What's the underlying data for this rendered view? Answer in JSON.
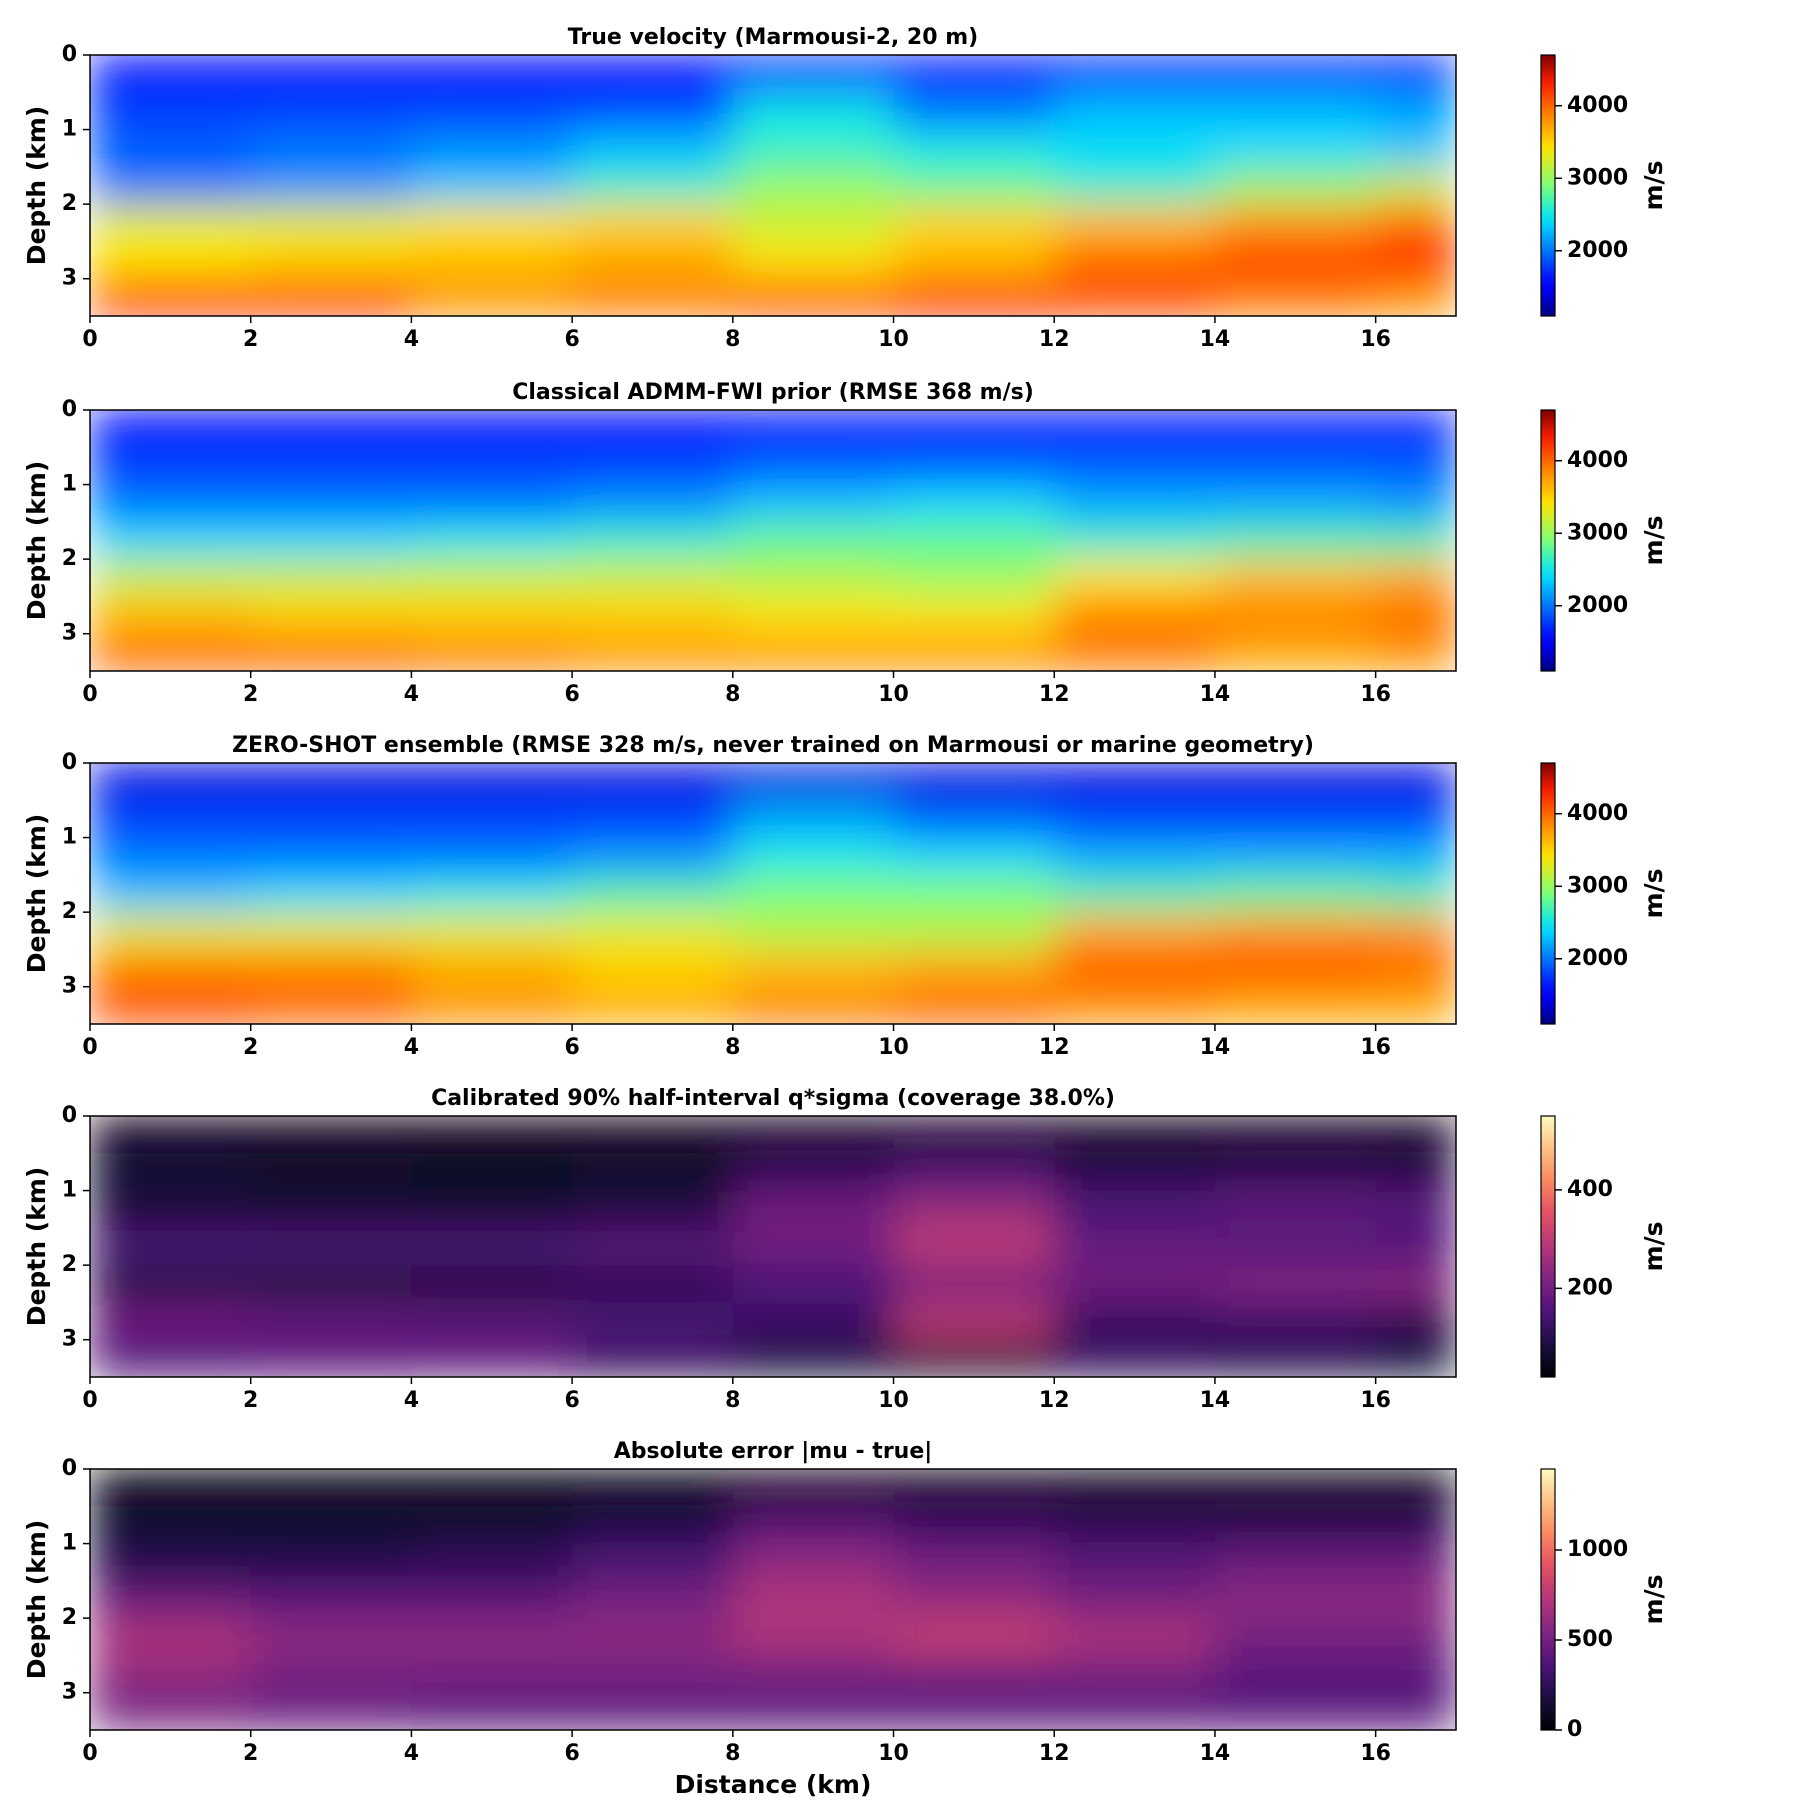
{
  "chart_data": [
    {
      "type": "heatmap",
      "title": "True velocity (Marmousi-2, 20 m)",
      "ylabel": "Depth (km)",
      "colorbar_label": "m/s",
      "colormap": "jet",
      "xlim": [
        0,
        17
      ],
      "xticks": [
        0,
        2,
        4,
        6,
        8,
        10,
        12,
        14,
        16
      ],
      "ylim": [
        3.5,
        0
      ],
      "yticks": [
        0,
        1,
        2,
        3
      ],
      "clim": [
        1100,
        4700
      ],
      "cticks": [
        2000,
        3000,
        4000
      ],
      "xbins": [
        0,
        2,
        4,
        6,
        8,
        10,
        12,
        14,
        16,
        17
      ],
      "ybins": [
        0,
        0.5,
        1,
        1.5,
        2,
        2.5,
        3,
        3.5
      ],
      "values": [
        [
          1500,
          1500,
          1500,
          1500,
          1500,
          1500,
          1500,
          1500,
          1500
        ],
        [
          1800,
          1800,
          1800,
          1800,
          2500,
          2000,
          2300,
          2300,
          2200
        ],
        [
          1900,
          2000,
          2100,
          2300,
          2600,
          2500,
          2400,
          2400,
          2300
        ],
        [
          2000,
          2100,
          2300,
          2600,
          3000,
          2800,
          2600,
          3000,
          3200
        ],
        [
          3300,
          3300,
          3400,
          3500,
          3200,
          3500,
          3600,
          3800,
          4000
        ],
        [
          3400,
          3500,
          3600,
          3700,
          3400,
          3600,
          4000,
          4200,
          4300
        ],
        [
          4300,
          4200,
          3800,
          3900,
          4100,
          4300,
          4100,
          3900,
          3800
        ]
      ]
    },
    {
      "type": "heatmap",
      "title": "Classical ADMM-FWI prior (RMSE 368 m/s)",
      "ylabel": "Depth (km)",
      "colorbar_label": "m/s",
      "colormap": "jet",
      "xlim": [
        0,
        17
      ],
      "xticks": [
        0,
        2,
        4,
        6,
        8,
        10,
        12,
        14,
        16
      ],
      "ylim": [
        3.5,
        0
      ],
      "yticks": [
        0,
        1,
        2,
        3
      ],
      "clim": [
        1100,
        4700
      ],
      "cticks": [
        2000,
        3000,
        4000
      ],
      "xbins": [
        0,
        2,
        4,
        6,
        8,
        10,
        12,
        14,
        16,
        17
      ],
      "ybins": [
        0,
        0.5,
        1,
        1.5,
        2,
        2.5,
        3,
        3.5
      ],
      "values": [
        [
          1500,
          1500,
          1500,
          1500,
          1500,
          1500,
          1500,
          1500,
          1500
        ],
        [
          1800,
          1800,
          1800,
          1800,
          1900,
          1900,
          1900,
          1900,
          1900
        ],
        [
          2000,
          2000,
          2000,
          2100,
          2300,
          2400,
          2200,
          2200,
          2100
        ],
        [
          2400,
          2400,
          2500,
          2600,
          2800,
          2800,
          2600,
          2700,
          2700
        ],
        [
          3200,
          3200,
          3200,
          3200,
          3100,
          3000,
          3400,
          3600,
          3700
        ],
        [
          3600,
          3500,
          3500,
          3500,
          3400,
          3400,
          3900,
          3900,
          4000
        ],
        [
          4000,
          4000,
          3900,
          3800,
          3800,
          3800,
          3900,
          3700,
          3800
        ]
      ]
    },
    {
      "type": "heatmap",
      "title": "ZERO-SHOT ensemble (RMSE 328 m/s, never trained on Marmousi or marine geometry)",
      "ylabel": "Depth (km)",
      "colorbar_label": "m/s",
      "colormap": "jet",
      "xlim": [
        0,
        17
      ],
      "xticks": [
        0,
        2,
        4,
        6,
        8,
        10,
        12,
        14,
        16
      ],
      "ylim": [
        3.5,
        0
      ],
      "yticks": [
        0,
        1,
        2,
        3
      ],
      "clim": [
        1100,
        4700
      ],
      "cticks": [
        2000,
        3000,
        4000
      ],
      "xbins": [
        0,
        2,
        4,
        6,
        8,
        10,
        12,
        14,
        16,
        17
      ],
      "ybins": [
        0,
        0.5,
        1,
        1.5,
        2,
        2.5,
        3,
        3.5
      ],
      "values": [
        [
          1400,
          1400,
          1400,
          1400,
          1400,
          1400,
          1400,
          1400,
          1400
        ],
        [
          1800,
          1800,
          1800,
          1800,
          2200,
          1900,
          1800,
          1800,
          1800
        ],
        [
          2000,
          2000,
          2000,
          2100,
          2500,
          2400,
          2200,
          2200,
          2200
        ],
        [
          2300,
          2400,
          2500,
          2700,
          2900,
          2900,
          2700,
          2800,
          2700
        ],
        [
          3300,
          3300,
          3300,
          3300,
          3100,
          3100,
          3700,
          3800,
          3800
        ],
        [
          3900,
          3900,
          3700,
          3500,
          3600,
          3700,
          4100,
          4100,
          4000
        ],
        [
          4100,
          4000,
          3800,
          3700,
          3900,
          4000,
          3800,
          3700,
          3700
        ]
      ]
    },
    {
      "type": "heatmap",
      "title": "Calibrated 90% half-interval q*sigma (coverage 38.0%)",
      "ylabel": "Depth (km)",
      "colorbar_label": "m/s",
      "colormap": "magma",
      "xlim": [
        0,
        17
      ],
      "xticks": [
        0,
        2,
        4,
        6,
        8,
        10,
        12,
        14,
        16
      ],
      "ylim": [
        3.5,
        0
      ],
      "yticks": [
        0,
        1,
        2,
        3
      ],
      "clim": [
        20,
        550
      ],
      "cticks": [
        200,
        400
      ],
      "xbins": [
        0,
        2,
        4,
        6,
        8,
        10,
        12,
        14,
        16,
        17
      ],
      "ybins": [
        0,
        0.5,
        1,
        1.5,
        2,
        2.5,
        3,
        3.5
      ],
      "values": [
        [
          40,
          40,
          40,
          40,
          40,
          40,
          40,
          40,
          40
        ],
        [
          80,
          70,
          60,
          70,
          120,
          150,
          100,
          110,
          100
        ],
        [
          70,
          60,
          60,
          80,
          200,
          250,
          150,
          180,
          170
        ],
        [
          150,
          150,
          150,
          170,
          200,
          300,
          180,
          160,
          150
        ],
        [
          80,
          70,
          70,
          100,
          150,
          200,
          200,
          220,
          230
        ],
        [
          200,
          180,
          170,
          150,
          130,
          300,
          120,
          130,
          100
        ],
        [
          150,
          170,
          180,
          120,
          80,
          60,
          120,
          100,
          80
        ]
      ]
    },
    {
      "type": "heatmap",
      "title": "Absolute error |mu - true|",
      "xlabel": "Distance (km)",
      "ylabel": "Depth (km)",
      "colorbar_label": "m/s",
      "colormap": "magma",
      "xlim": [
        0,
        17
      ],
      "xticks": [
        0,
        2,
        4,
        6,
        8,
        10,
        12,
        14,
        16
      ],
      "ylim": [
        3.5,
        0
      ],
      "yticks": [
        0,
        1,
        2,
        3
      ],
      "clim": [
        0,
        1450
      ],
      "cticks": [
        0,
        500,
        1000
      ],
      "xbins": [
        0,
        2,
        4,
        6,
        8,
        10,
        12,
        14,
        16,
        17
      ],
      "ybins": [
        0,
        0.5,
        1,
        1.5,
        2,
        2.5,
        3,
        3.5
      ],
      "values": [
        [
          0,
          0,
          0,
          0,
          0,
          0,
          0,
          0,
          0
        ],
        [
          150,
          150,
          150,
          200,
          400,
          300,
          250,
          250,
          250
        ],
        [
          200,
          200,
          250,
          350,
          600,
          500,
          400,
          450,
          450
        ],
        [
          450,
          400,
          400,
          500,
          700,
          600,
          500,
          600,
          600
        ],
        [
          700,
          600,
          600,
          600,
          700,
          800,
          700,
          500,
          500
        ],
        [
          600,
          500,
          500,
          500,
          500,
          500,
          500,
          400,
          400
        ],
        [
          500,
          450,
          400,
          400,
          400,
          400,
          400,
          400,
          400
        ]
      ]
    }
  ]
}
